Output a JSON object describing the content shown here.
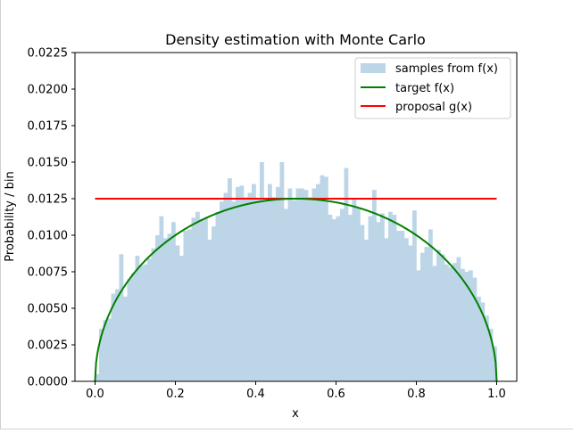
{
  "chart_data": {
    "type": "bar",
    "title": "Density estimation with Monte Carlo",
    "xlabel": "x",
    "ylabel": "Probability / bin",
    "xlim": [
      -0.05,
      1.05
    ],
    "ylim": [
      0,
      0.0225
    ],
    "xticks": [
      "0.0",
      "0.2",
      "0.4",
      "0.6",
      "0.8",
      "1.0"
    ],
    "yticks": [
      "0.0000",
      "0.0025",
      "0.0050",
      "0.0075",
      "0.0100",
      "0.0125",
      "0.0150",
      "0.0175",
      "0.0200",
      "0.0225"
    ],
    "legend_position": "top-right",
    "colors": {
      "histogram": "#bcd6e8",
      "target": "#008000",
      "proposal": "#ff0000"
    },
    "histogram": {
      "name": "samples from f(x)",
      "bin_start": 0.0,
      "bin_width": 0.01,
      "values": [
        0.0005,
        0.0036,
        0.0042,
        0.0043,
        0.006,
        0.0063,
        0.0087,
        0.0058,
        0.007,
        0.0074,
        0.0086,
        0.0079,
        0.008,
        0.0084,
        0.0091,
        0.01,
        0.0113,
        0.0098,
        0.0101,
        0.0109,
        0.0093,
        0.0086,
        0.0103,
        0.0104,
        0.0112,
        0.0116,
        0.0111,
        0.0112,
        0.0097,
        0.0106,
        0.0116,
        0.0123,
        0.0129,
        0.0139,
        0.0123,
        0.0133,
        0.0134,
        0.0126,
        0.0129,
        0.0135,
        0.0125,
        0.015,
        0.0125,
        0.0135,
        0.0126,
        0.0133,
        0.015,
        0.0118,
        0.0132,
        0.0124,
        0.0132,
        0.0132,
        0.0131,
        0.0126,
        0.0132,
        0.0135,
        0.0141,
        0.014,
        0.0114,
        0.0111,
        0.0113,
        0.0118,
        0.0146,
        0.0114,
        0.0125,
        0.0119,
        0.0107,
        0.0097,
        0.0113,
        0.0131,
        0.0109,
        0.0115,
        0.0098,
        0.0116,
        0.0114,
        0.0103,
        0.0103,
        0.0098,
        0.0093,
        0.0117,
        0.0076,
        0.0088,
        0.0092,
        0.0104,
        0.0079,
        0.009,
        0.0087,
        0.008,
        0.0078,
        0.0081,
        0.0085,
        0.0077,
        0.0075,
        0.0076,
        0.0071,
        0.0058,
        0.0054,
        0.0045,
        0.0036,
        0.0024,
        0.0015
      ]
    },
    "target": {
      "name": "target f(x)",
      "formula": "0.0125 * sqrt(1 - (2x - 1)^2)",
      "peak": 0.0125
    },
    "proposal": {
      "name": "proposal g(x)",
      "x": [
        0.0,
        1.0
      ],
      "y": [
        0.0125,
        0.0125
      ]
    }
  }
}
